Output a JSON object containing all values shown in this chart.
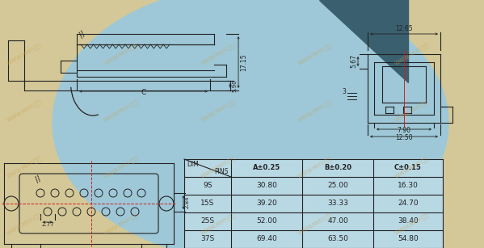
{
  "bg_outer": "#d4c898",
  "bg_dome_color": "#9ec8d8",
  "line_color": "#222222",
  "red_color": "#cc2222",
  "table_bg": "#b8d8e4",
  "table_headers": [
    "A±0.25",
    "B±0.20",
    "C±0.15"
  ],
  "table_rows": [
    [
      "9S",
      "30.80",
      "25.00",
      "16.30"
    ],
    [
      "15S",
      "39.20",
      "33.33",
      "24.70"
    ],
    [
      "25S",
      "52.00",
      "47.00",
      "38.40"
    ],
    [
      "37S",
      "69.40",
      "63.50",
      "54.80"
    ]
  ],
  "wm_color": "#c8a050",
  "wm_alpha": 0.5,
  "wm_text": "WWW.MHY-电子"
}
